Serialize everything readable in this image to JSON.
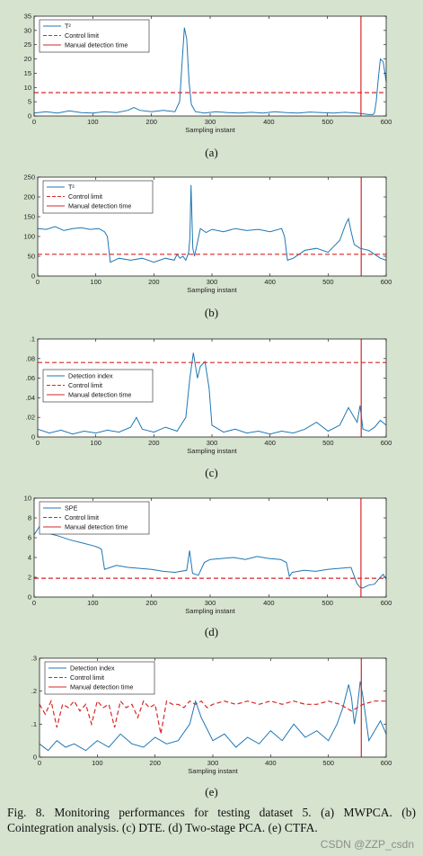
{
  "figure": {
    "caption": "Fig. 8.    Monitoring performances for testing dataset 5. (a) MWPCA. (b) Cointegration analysis. (c) DTE. (d)  Two-stage PCA. (e) CTFA.",
    "watermark": "CSDN @ZZP_csdn"
  },
  "colors": {
    "background": "#d6e3cf",
    "plot_bg": "#ffffff",
    "index_line": "#1f77b4",
    "limit_line": "#d62728",
    "manual_line": "#d62728"
  },
  "chart_data": [
    {
      "panel": "(a)",
      "type": "line",
      "xlabel": "Sampling instant",
      "xlim": [
        0,
        600
      ],
      "ylim": [
        0,
        35
      ],
      "xticks": [
        0,
        100,
        200,
        300,
        400,
        500,
        600
      ],
      "yticks": [
        0,
        5,
        10,
        15,
        20,
        25,
        30,
        35
      ],
      "legend_position": "top-left",
      "series": [
        {
          "name": "T²",
          "style": "solid",
          "color": "#1f77b4",
          "x": [
            0,
            20,
            40,
            60,
            80,
            100,
            120,
            140,
            160,
            170,
            180,
            200,
            220,
            240,
            248,
            252,
            256,
            260,
            264,
            268,
            275,
            290,
            310,
            330,
            350,
            370,
            390,
            410,
            430,
            450,
            470,
            490,
            510,
            530,
            550,
            560,
            570,
            575,
            578,
            580,
            583,
            586,
            590,
            595,
            600
          ],
          "y": [
            1.0,
            1.5,
            1.0,
            1.8,
            1.2,
            1.0,
            1.5,
            1.2,
            2.0,
            3.0,
            2.0,
            1.5,
            2.0,
            1.5,
            5.0,
            18.0,
            31.0,
            27.0,
            12.0,
            4.0,
            1.5,
            1.0,
            1.5,
            1.2,
            1.0,
            1.3,
            1.0,
            1.5,
            1.2,
            1.0,
            1.4,
            1.2,
            1.0,
            1.3,
            1.0,
            0.8,
            0.5,
            0.5,
            0.6,
            1.0,
            5.0,
            12.0,
            20.0,
            19.0,
            12.0
          ]
        },
        {
          "name": "Control limit",
          "style": "dashed",
          "color": "#d62728",
          "x": [
            0,
            600
          ],
          "y": [
            8.2,
            8.2
          ]
        },
        {
          "name": "Manual detection time",
          "style": "solid",
          "color": "#d62728",
          "x": [
            557,
            557
          ],
          "y": [
            0,
            35
          ]
        }
      ]
    },
    {
      "panel": "(b)",
      "type": "line",
      "xlabel": "Sampling instant",
      "xlim": [
        0,
        600
      ],
      "ylim": [
        0,
        250
      ],
      "xticks": [
        0,
        100,
        200,
        300,
        400,
        500,
        600
      ],
      "yticks": [
        0,
        50,
        100,
        150,
        200,
        250
      ],
      "legend_position": "top-left",
      "series": [
        {
          "name": "T²",
          "style": "solid",
          "color": "#1f77b4",
          "x": [
            0,
            15,
            30,
            45,
            60,
            75,
            90,
            105,
            115,
            120,
            125,
            140,
            160,
            180,
            200,
            220,
            235,
            240,
            245,
            250,
            255,
            260,
            262,
            264,
            267,
            270,
            280,
            290,
            300,
            320,
            340,
            360,
            380,
            400,
            420,
            425,
            430,
            440,
            460,
            480,
            500,
            520,
            530,
            535,
            540,
            545,
            555,
            570,
            580,
            590,
            600
          ],
          "y": [
            120,
            118,
            125,
            115,
            120,
            122,
            118,
            120,
            112,
            100,
            35,
            45,
            40,
            45,
            35,
            45,
            40,
            55,
            45,
            50,
            40,
            60,
            95,
            230,
            70,
            50,
            120,
            110,
            118,
            112,
            120,
            115,
            118,
            112,
            120,
            100,
            40,
            45,
            65,
            70,
            60,
            90,
            130,
            145,
            110,
            80,
            70,
            65,
            55,
            45,
            40
          ]
        },
        {
          "name": "Control limit",
          "style": "dashed",
          "color": "#d62728",
          "x": [
            0,
            600
          ],
          "y": [
            55,
            55
          ]
        },
        {
          "name": "Manual detection time",
          "style": "solid",
          "color": "#d62728",
          "x": [
            557,
            557
          ],
          "y": [
            0,
            250
          ]
        }
      ]
    },
    {
      "panel": "(c)",
      "type": "line",
      "xlabel": "Sampling instant",
      "xlim": [
        0,
        600
      ],
      "ylim": [
        0,
        0.1
      ],
      "xticks": [
        0,
        100,
        200,
        300,
        400,
        500,
        600
      ],
      "yticks": [
        0,
        0.02,
        0.04,
        0.06,
        0.08,
        0.1
      ],
      "legend_position": "left",
      "series": [
        {
          "name": "Detection index",
          "style": "solid",
          "color": "#1f77b4",
          "x": [
            0,
            20,
            40,
            60,
            80,
            100,
            120,
            140,
            160,
            170,
            180,
            200,
            220,
            240,
            255,
            262,
            268,
            275,
            280,
            288,
            295,
            300,
            320,
            340,
            360,
            380,
            400,
            420,
            440,
            460,
            480,
            500,
            520,
            535,
            545,
            550,
            555,
            560,
            570,
            580,
            590,
            600
          ],
          "y": [
            0.008,
            0.004,
            0.007,
            0.003,
            0.006,
            0.004,
            0.007,
            0.005,
            0.01,
            0.02,
            0.008,
            0.005,
            0.01,
            0.006,
            0.02,
            0.06,
            0.086,
            0.06,
            0.072,
            0.077,
            0.05,
            0.012,
            0.005,
            0.008,
            0.004,
            0.006,
            0.003,
            0.006,
            0.004,
            0.008,
            0.015,
            0.006,
            0.012,
            0.03,
            0.02,
            0.015,
            0.032,
            0.008,
            0.006,
            0.01,
            0.017,
            0.012
          ]
        },
        {
          "name": "Control limit",
          "style": "dashed",
          "color": "#d62728",
          "x": [
            0,
            600
          ],
          "y": [
            0.076,
            0.076
          ]
        },
        {
          "name": "Manual detection time",
          "style": "solid",
          "color": "#d62728",
          "x": [
            557,
            557
          ],
          "y": [
            0,
            0.1
          ]
        }
      ]
    },
    {
      "panel": "(d)",
      "type": "line",
      "xlabel": "Sampling instant",
      "xlim": [
        0,
        600
      ],
      "ylim": [
        0,
        10
      ],
      "xticks": [
        0,
        100,
        200,
        300,
        400,
        500,
        600
      ],
      "yticks": [
        0,
        2,
        4,
        6,
        8,
        10
      ],
      "legend_position": "top-left",
      "series": [
        {
          "name": "SPE",
          "style": "solid",
          "color": "#1f77b4",
          "x": [
            0,
            10,
            20,
            40,
            60,
            80,
            100,
            110,
            115,
            120,
            140,
            160,
            180,
            200,
            220,
            240,
            260,
            265,
            270,
            280,
            290,
            300,
            320,
            340,
            360,
            380,
            400,
            420,
            430,
            435,
            440,
            460,
            480,
            500,
            520,
            540,
            545,
            550,
            555,
            560,
            570,
            580,
            590,
            595,
            600
          ],
          "y": [
            6.3,
            7.2,
            6.5,
            6.2,
            5.8,
            5.5,
            5.2,
            5.0,
            4.8,
            2.8,
            3.2,
            3.0,
            2.9,
            2.8,
            2.6,
            2.5,
            2.7,
            4.7,
            2.4,
            2.2,
            3.5,
            3.8,
            3.9,
            4.0,
            3.8,
            4.1,
            3.9,
            3.8,
            3.5,
            2.1,
            2.5,
            2.7,
            2.6,
            2.8,
            2.9,
            3.0,
            2.2,
            1.4,
            1.0,
            0.9,
            1.2,
            1.3,
            2.0,
            2.3,
            1.8
          ]
        },
        {
          "name": "Control limit",
          "style": "dashed",
          "color": "#d62728",
          "x": [
            0,
            600
          ],
          "y": [
            1.9,
            1.9
          ]
        },
        {
          "name": "Manual detection time",
          "style": "solid",
          "color": "#d62728",
          "x": [
            557,
            557
          ],
          "y": [
            0,
            10
          ]
        }
      ]
    },
    {
      "panel": "(e)",
      "type": "line",
      "xlabel": "Sampling instant",
      "xlim": [
        0,
        600
      ],
      "ylim": [
        0,
        0.3
      ],
      "xticks": [
        0,
        100,
        200,
        300,
        400,
        500,
        600
      ],
      "yticks": [
        0,
        0.1,
        0.2,
        0.3
      ],
      "legend_position": "top-left",
      "series": [
        {
          "name": "Detection index",
          "style": "solid",
          "color": "#1f77b4",
          "x": [
            0,
            15,
            30,
            45,
            60,
            80,
            100,
            120,
            140,
            160,
            180,
            200,
            220,
            240,
            260,
            270,
            280,
            300,
            320,
            340,
            360,
            380,
            400,
            420,
            440,
            460,
            480,
            500,
            515,
            525,
            535,
            540,
            545,
            550,
            555,
            560,
            570,
            580,
            590,
            600
          ],
          "y": [
            0.04,
            0.02,
            0.05,
            0.03,
            0.04,
            0.02,
            0.05,
            0.03,
            0.07,
            0.04,
            0.03,
            0.06,
            0.04,
            0.05,
            0.1,
            0.17,
            0.12,
            0.05,
            0.07,
            0.03,
            0.06,
            0.04,
            0.08,
            0.05,
            0.1,
            0.06,
            0.08,
            0.05,
            0.1,
            0.15,
            0.22,
            0.18,
            0.1,
            0.15,
            0.23,
            0.18,
            0.05,
            0.08,
            0.11,
            0.07
          ]
        },
        {
          "name": "Control limit",
          "style": "dashed",
          "color": "#d62728",
          "x": [
            0,
            10,
            20,
            30,
            40,
            50,
            60,
            70,
            80,
            90,
            100,
            110,
            120,
            130,
            140,
            150,
            160,
            170,
            180,
            190,
            200,
            210,
            220,
            230,
            240,
            250,
            260,
            270,
            280,
            290,
            300,
            320,
            340,
            360,
            380,
            400,
            420,
            440,
            460,
            480,
            500,
            520,
            540,
            560,
            580,
            600
          ],
          "y": [
            0.16,
            0.13,
            0.17,
            0.09,
            0.16,
            0.15,
            0.17,
            0.14,
            0.16,
            0.1,
            0.17,
            0.15,
            0.16,
            0.09,
            0.17,
            0.15,
            0.16,
            0.12,
            0.17,
            0.15,
            0.16,
            0.07,
            0.17,
            0.16,
            0.16,
            0.15,
            0.17,
            0.16,
            0.17,
            0.15,
            0.16,
            0.17,
            0.16,
            0.17,
            0.16,
            0.17,
            0.16,
            0.17,
            0.16,
            0.16,
            0.17,
            0.16,
            0.14,
            0.16,
            0.17,
            0.17
          ]
        },
        {
          "name": "Manual detection time",
          "style": "solid",
          "color": "#d62728",
          "x": [
            557,
            557
          ],
          "y": [
            0,
            0.3
          ]
        }
      ]
    }
  ]
}
